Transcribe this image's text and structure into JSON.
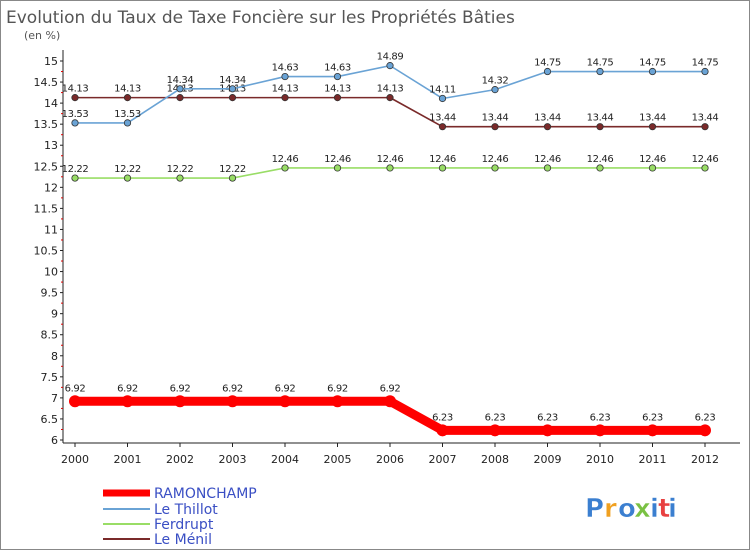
{
  "chart_data": {
    "type": "line",
    "title": "Evolution du Taux de Taxe Foncière sur les Propriétés Bâties",
    "subtitle": "(en %)",
    "x": [
      "2000",
      "2001",
      "2002",
      "2003",
      "2004",
      "2005",
      "2006",
      "2007",
      "2008",
      "2009",
      "2010",
      "2011",
      "2012"
    ],
    "ylim": [
      6,
      15
    ],
    "yticks": [
      "6",
      "6.5",
      "7",
      "7.5",
      "8",
      "8.5",
      "9",
      "9.5",
      "10",
      "10.5",
      "11",
      "11.5",
      "12",
      "12.5",
      "13",
      "13.5",
      "14",
      "14.5",
      "15"
    ],
    "grid": false,
    "legend_position": "bottom-left",
    "series": [
      {
        "name": "RAMONCHAMP",
        "color": "#ff0000",
        "values": [
          6.92,
          6.92,
          6.92,
          6.92,
          6.92,
          6.92,
          6.92,
          6.23,
          6.23,
          6.23,
          6.23,
          6.23,
          6.23
        ],
        "labels": [
          "6.92",
          "6.92",
          "6.92",
          "6.92",
          "6.92",
          "6.92",
          "6.92",
          "6.23",
          "6.23",
          "6.23",
          "6.23",
          "6.23",
          "6.23"
        ]
      },
      {
        "name": "Le Thillot",
        "color": "#6aa3d5",
        "values": [
          13.53,
          13.53,
          14.34,
          14.34,
          14.63,
          14.63,
          14.89,
          14.11,
          14.32,
          14.75,
          14.75,
          14.75,
          14.75
        ],
        "labels": [
          "13.53",
          "13.53",
          "14.34",
          "14.34",
          "14.63",
          "14.63",
          "14.89",
          "14.11",
          "14.32",
          "14.75",
          "14.75",
          "14.75",
          "14.75"
        ]
      },
      {
        "name": "Ferdrupt",
        "color": "#99dd66",
        "values": [
          12.22,
          12.22,
          12.22,
          12.22,
          12.46,
          12.46,
          12.46,
          12.46,
          12.46,
          12.46,
          12.46,
          12.46,
          12.46
        ],
        "labels": [
          "12.22",
          "12.22",
          "12.22",
          "12.22",
          "12.46",
          "12.46",
          "12.46",
          "12.46",
          "12.46",
          "12.46",
          "12.46",
          "12.46",
          "12.46"
        ]
      },
      {
        "name": "Le Ménil",
        "color": "#7a2a2a",
        "values": [
          14.13,
          14.13,
          14.13,
          14.13,
          14.13,
          14.13,
          14.13,
          13.44,
          13.44,
          13.44,
          13.44,
          13.44,
          13.44
        ],
        "labels": [
          "14.13",
          "14.13",
          "14.13",
          "14.13",
          "14.13",
          "14.13",
          "14.13",
          "13.44",
          "13.44",
          "13.44",
          "13.44",
          "13.44",
          "13.44"
        ]
      }
    ]
  },
  "brand": {
    "letters": [
      "P",
      "r",
      "o",
      "x",
      "i",
      "t",
      "i"
    ],
    "colors": [
      "#3b7fd0",
      "#f0a020",
      "#3b7fd0",
      "#7ac143",
      "#3b7fd0",
      "#e84040",
      "#3b7fd0"
    ]
  }
}
